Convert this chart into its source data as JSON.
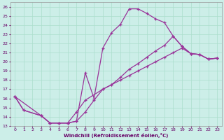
{
  "xlabel": "Windchill (Refroidissement éolien,°C)",
  "bg_color": "#cceee8",
  "grid_color": "#aaddcc",
  "line_color": "#993399",
  "xlim": [
    -0.5,
    23.5
  ],
  "ylim": [
    13,
    26.5
  ],
  "xticks": [
    0,
    1,
    2,
    3,
    4,
    5,
    6,
    7,
    8,
    9,
    10,
    11,
    12,
    13,
    14,
    15,
    16,
    17,
    18,
    19,
    20,
    21,
    22,
    23
  ],
  "yticks": [
    13,
    14,
    15,
    16,
    17,
    18,
    19,
    20,
    21,
    22,
    23,
    24,
    25,
    26
  ],
  "series": [
    {
      "x": [
        0,
        1,
        3,
        4,
        5,
        6,
        7,
        8,
        9,
        10,
        11,
        12,
        13,
        14,
        15,
        16,
        17,
        18,
        19,
        20,
        21,
        22,
        23
      ],
      "y": [
        16.2,
        14.7,
        14.1,
        13.3,
        13.3,
        13.3,
        13.5,
        18.8,
        16.0,
        21.5,
        23.2,
        24.1,
        25.8,
        25.8,
        25.3,
        24.7,
        24.3,
        22.8,
        21.7,
        20.9,
        20.8,
        20.3,
        20.4
      ]
    },
    {
      "x": [
        0,
        1,
        3,
        4,
        5,
        6,
        7,
        8,
        9,
        10,
        11,
        12,
        13,
        14,
        15,
        16,
        17,
        18,
        19,
        20,
        21,
        22,
        23
      ],
      "y": [
        16.2,
        14.7,
        14.1,
        13.3,
        13.3,
        13.3,
        13.5,
        14.5,
        15.8,
        17.0,
        17.5,
        18.3,
        19.2,
        19.8,
        20.5,
        21.2,
        21.8,
        22.8,
        21.7,
        20.9,
        20.8,
        20.3,
        20.4
      ]
    },
    {
      "x": [
        0,
        3,
        4,
        5,
        6,
        7,
        8,
        10,
        11,
        12,
        13,
        14,
        15,
        16,
        17,
        18,
        19,
        20,
        21,
        22,
        23
      ],
      "y": [
        16.2,
        14.1,
        13.3,
        13.3,
        13.3,
        14.5,
        15.8,
        17.0,
        17.5,
        18.0,
        18.5,
        19.0,
        19.5,
        20.0,
        20.5,
        21.0,
        21.5,
        20.9,
        20.8,
        20.3,
        20.4
      ]
    }
  ]
}
